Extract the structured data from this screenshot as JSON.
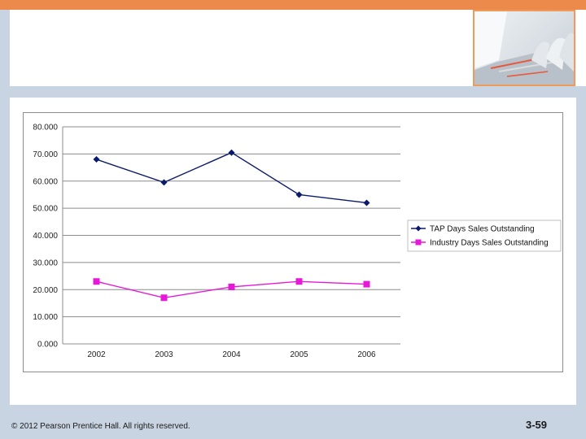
{
  "theme": {
    "accent_orange": "#ec8a4c",
    "frame_blue": "#c9d4e2",
    "series1_color": "#0c1a6b",
    "series2_color": "#e619d8"
  },
  "header_image": {
    "icon": "conference-room-photo"
  },
  "footer": {
    "copyright": "© 2012 Pearson Prentice Hall. All rights reserved.",
    "slide_number": "3-59"
  },
  "chart_data": {
    "type": "line",
    "title": "",
    "xlabel": "",
    "ylabel": "",
    "categories": [
      "2002",
      "2003",
      "2004",
      "2005",
      "2006"
    ],
    "y_ticks": [
      "0.000",
      "10.000",
      "20.000",
      "30.000",
      "40.000",
      "50.000",
      "60.000",
      "70.000",
      "80.000"
    ],
    "ylim": [
      0,
      80
    ],
    "grid": "horizontal",
    "legend_position": "right",
    "series": [
      {
        "name": "TAP Days Sales Outstanding",
        "values": [
          68,
          59.5,
          70.5,
          55,
          52
        ],
        "marker": "diamond",
        "color": "#0c1a6b"
      },
      {
        "name": "Industry Days Sales Outstanding",
        "values": [
          23,
          17,
          21,
          23,
          22
        ],
        "marker": "square",
        "color": "#e619d8"
      }
    ]
  }
}
